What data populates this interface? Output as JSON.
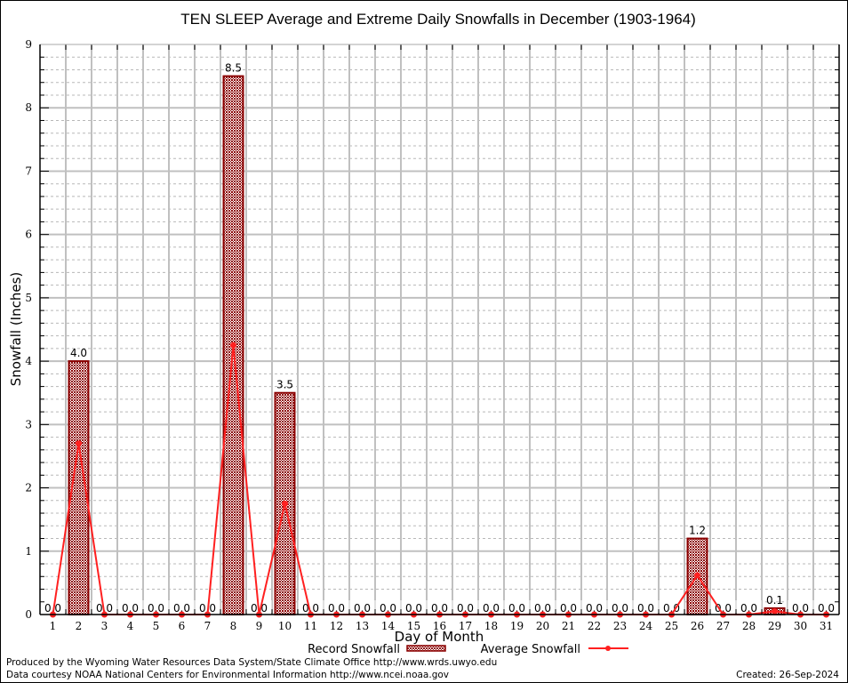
{
  "chart_data": {
    "type": "bar",
    "title": "TEN SLEEP Average and Extreme Daily Snowfalls in December (1903-1964)",
    "xlabel": "Day of Month",
    "ylabel": "Snowfall (Inches)",
    "ylim": [
      0,
      9
    ],
    "yticks": [
      "0",
      "1",
      "2",
      "3",
      "4",
      "5",
      "6",
      "7",
      "8",
      "9"
    ],
    "grid": true,
    "categories": [
      "1",
      "2",
      "3",
      "4",
      "5",
      "6",
      "7",
      "8",
      "9",
      "10",
      "11",
      "12",
      "13",
      "14",
      "15",
      "16",
      "17",
      "18",
      "19",
      "20",
      "21",
      "22",
      "23",
      "24",
      "25",
      "26",
      "27",
      "28",
      "29",
      "30",
      "31"
    ],
    "series": [
      {
        "name": "Record Snowfall",
        "type": "bar",
        "color": "#8b0000",
        "values": [
          0.0,
          4.0,
          0.0,
          0.0,
          0.0,
          0.0,
          0.0,
          8.5,
          0.0,
          3.5,
          0.0,
          0.0,
          0.0,
          0.0,
          0.0,
          0.0,
          0.0,
          0.0,
          0.0,
          0.0,
          0.0,
          0.0,
          0.0,
          0.0,
          0.0,
          1.2,
          0.0,
          0.0,
          0.1,
          0.0,
          0.0
        ],
        "labels": [
          "0.0",
          "4.0",
          "0.0",
          "0.0",
          "0.0",
          "0.0",
          "0.0",
          "8.5",
          "0.0",
          "3.5",
          "0.0",
          "0.0",
          "0.0",
          "0.0",
          "0.0",
          "0.0",
          "0.0",
          "0.0",
          "0.0",
          "0.0",
          "0.0",
          "0.0",
          "0.0",
          "0.0",
          "0.0",
          "1.2",
          "0.0",
          "0.0",
          "0.1",
          "0.0",
          "0.0"
        ]
      },
      {
        "name": "Average Snowfall",
        "type": "line",
        "color": "#ff2020",
        "values": [
          0,
          2.7,
          0,
          0,
          0,
          0,
          0,
          4.25,
          0,
          1.75,
          0,
          0,
          0,
          0,
          0,
          0,
          0,
          0,
          0,
          0,
          0,
          0,
          0,
          0,
          0,
          0.62,
          0,
          0,
          0.05,
          0,
          0
        ]
      }
    ],
    "legend": "bottom"
  },
  "footer": {
    "produced_by": "Produced by the Wyoming Water Resources Data System/State Climate Office http://www.wrds.uwyo.edu",
    "data_courtesy": "Data courtesy NOAA National Centers for Environmental Information http://www.ncei.noaa.gov",
    "created": "Created: 26-Sep-2024"
  }
}
